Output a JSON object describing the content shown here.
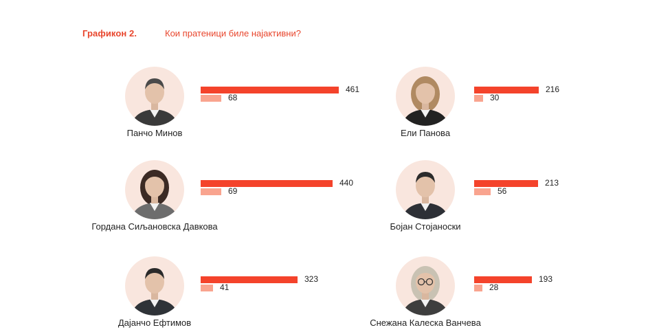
{
  "header": {
    "number": "Графикон 2.",
    "title": "Кои пратеници биле најактивни?"
  },
  "colors": {
    "accent": "#e8452c",
    "primary_bar": "#f4432b",
    "secondary_bar": "#f9a48f",
    "avatar_bg": "#f9e6de"
  },
  "chart_data": {
    "type": "bar",
    "title": "Кои пратеници биле најактивни?",
    "xlim": [
      0,
      461
    ],
    "categories": [
      "Панчо Минов",
      "Гордана Сиљановска Давкова",
      "Дајанчо Ефтимов",
      "Ели Панова",
      "Бојан Стојаноски",
      "Снежана Калеска Ванчева"
    ],
    "series": [
      {
        "values": [
          461,
          440,
          323,
          216,
          213,
          193
        ],
        "color": "#f4432b"
      },
      {
        "values": [
          68,
          69,
          41,
          30,
          56,
          28
        ],
        "color": "#f9a48f"
      }
    ]
  },
  "people": [
    {
      "name": "Панчо Минов",
      "primary": 461,
      "secondary": 68,
      "hair": "#4a4a4a",
      "suit": "#3a3a3a",
      "long_hair": false,
      "glasses": false
    },
    {
      "name": "Гордана Сиљановска Давкова",
      "primary": 440,
      "secondary": 69,
      "hair": "#3b2a24",
      "suit": "#6d6d6d",
      "long_hair": true,
      "glasses": false
    },
    {
      "name": "Дајанчо Ефтимов",
      "primary": 323,
      "secondary": 41,
      "hair": "#2a2a2a",
      "suit": "#2f3338",
      "long_hair": false,
      "glasses": false
    },
    {
      "name": "Ели Панова",
      "primary": 216,
      "secondary": 30,
      "hair": "#b08a62",
      "suit": "#222222",
      "long_hair": true,
      "glasses": false
    },
    {
      "name": "Бојан Стојаноски",
      "primary": 213,
      "secondary": 56,
      "hair": "#2b2b2b",
      "suit": "#2d3036",
      "long_hair": false,
      "glasses": false
    },
    {
      "name": "Снежана Калеска Ванчева",
      "primary": 193,
      "secondary": 28,
      "hair": "#c9c2b3",
      "suit": "#3e3e3e",
      "long_hair": true,
      "glasses": true
    }
  ]
}
